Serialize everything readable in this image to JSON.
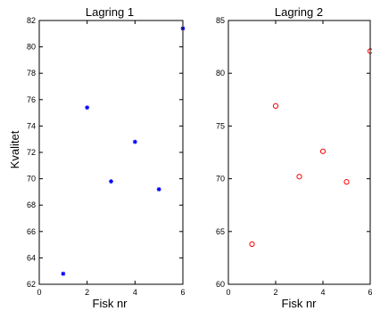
{
  "chart_data": [
    {
      "type": "scatter",
      "title": "Lagring 1",
      "xlabel": "Fisk nr",
      "ylabel": "Kvalitet",
      "xlim": [
        0,
        6
      ],
      "ylim": [
        62,
        82
      ],
      "xticks": [
        0,
        2,
        4,
        6
      ],
      "yticks": [
        62,
        64,
        66,
        68,
        70,
        72,
        74,
        76,
        78,
        80,
        82
      ],
      "grid": false,
      "marker": "asterisk",
      "color": "#0000ff",
      "x": [
        1,
        2,
        3,
        4,
        5,
        6
      ],
      "y": [
        62.8,
        75.4,
        69.8,
        72.8,
        69.2,
        81.4
      ]
    },
    {
      "type": "scatter",
      "title": "Lagring 2",
      "xlabel": "Fisk nr",
      "ylabel": "",
      "xlim": [
        0,
        6
      ],
      "ylim": [
        60,
        85
      ],
      "xticks": [
        0,
        2,
        4,
        6
      ],
      "yticks": [
        60,
        65,
        70,
        75,
        80,
        85
      ],
      "grid": false,
      "marker": "circle",
      "color": "#ff0000",
      "x": [
        1,
        2,
        3,
        4,
        5,
        6
      ],
      "y": [
        63.8,
        76.9,
        70.2,
        72.6,
        69.7,
        82.1
      ]
    }
  ]
}
